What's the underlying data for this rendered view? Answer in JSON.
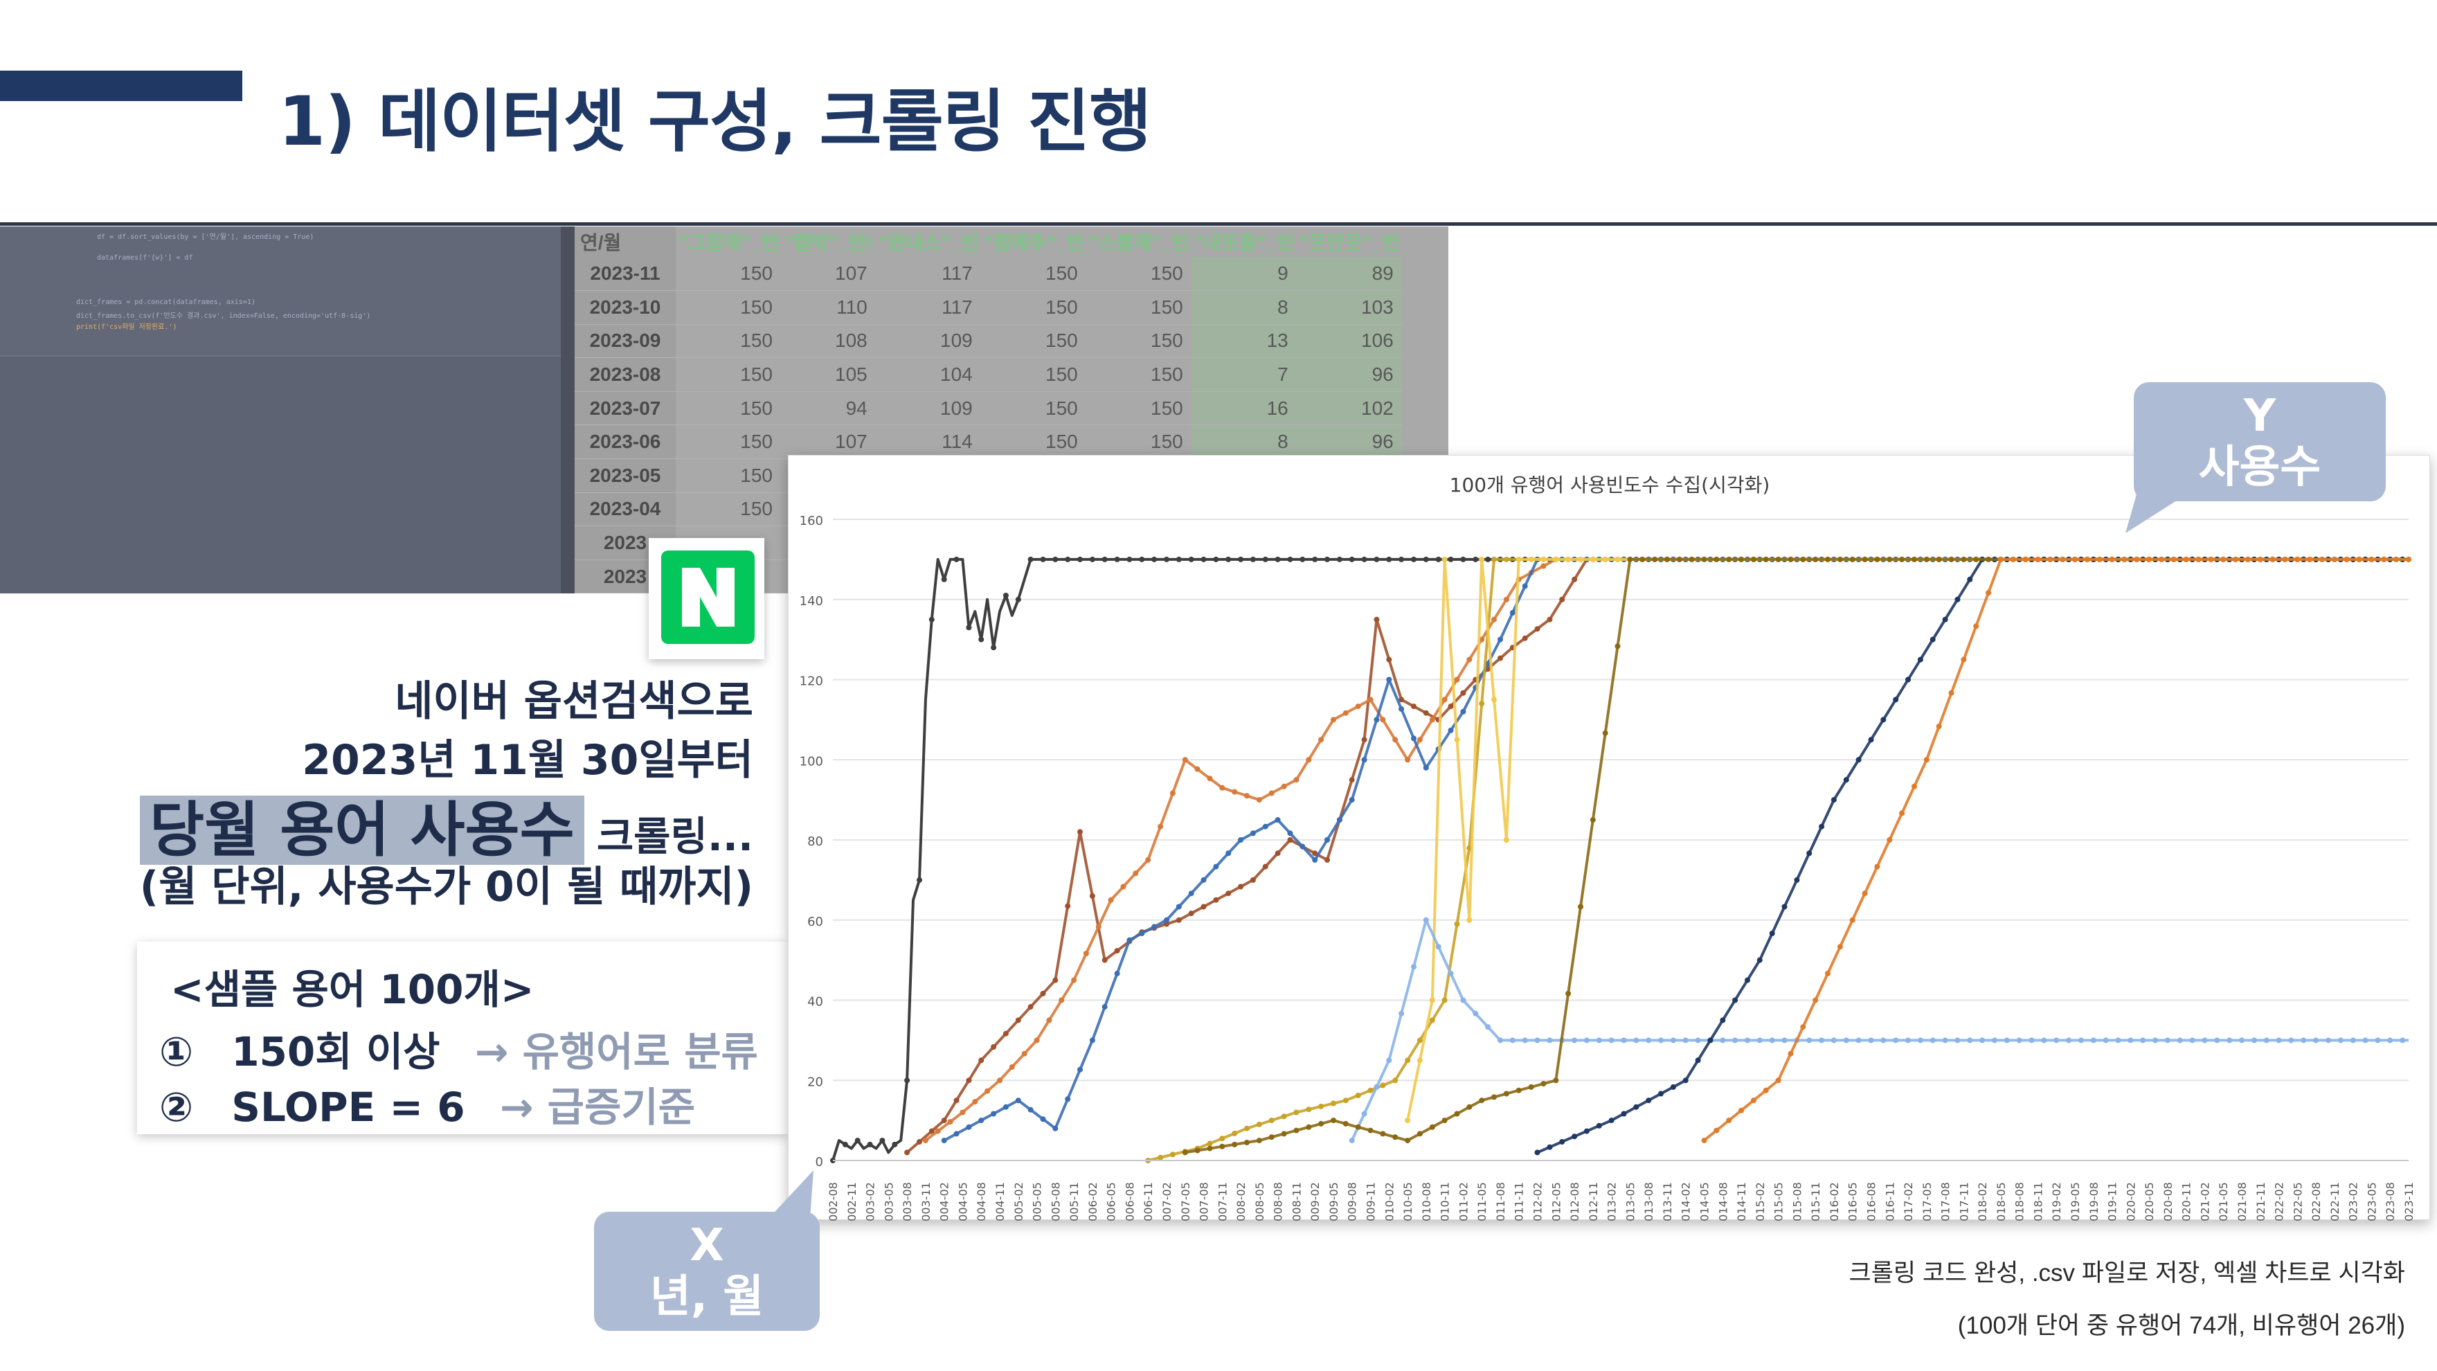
{
  "slide": {
    "title": "1) 데이터셋 구성, 크롤링 진행"
  },
  "code_panel": {
    "lines": [
      "df = df.sort_values(by = ['연/월'], ascending = True)",
      "dataframes[f'{w}'] = df",
      "dict_frames = pd.concat(dataframes, axis=1)",
      "dict_frames.to_csv(f'빈도수 결과.csv', index=False, encoding='utf-8-sig')",
      "print(f'csv파일 저장완료.')"
    ]
  },
  "excel": {
    "headers": [
      "연/월",
      "\"그잡재\"_빈",
      "\"캘박\"_빈!",
      "\"완내스\"_빈",
      "\"점메추\"_빈",
      "\"스불재\"_빈도",
      "\"내또출\"_빈",
      "\"웃안웃\"_빈"
    ],
    "rows": [
      [
        "2023-11",
        "150",
        "107",
        "117",
        "150",
        "150",
        "9",
        "89"
      ],
      [
        "2023-10",
        "150",
        "110",
        "117",
        "150",
        "150",
        "8",
        "103"
      ],
      [
        "2023-09",
        "150",
        "108",
        "109",
        "150",
        "150",
        "13",
        "106"
      ],
      [
        "2023-08",
        "150",
        "105",
        "104",
        "150",
        "150",
        "7",
        "96"
      ],
      [
        "2023-07",
        "150",
        "94",
        "109",
        "150",
        "150",
        "16",
        "102"
      ],
      [
        "2023-06",
        "150",
        "107",
        "114",
        "150",
        "150",
        "8",
        "96"
      ],
      [
        "2023-05",
        "150",
        "",
        "",
        "",
        "",
        "",
        ""
      ],
      [
        "2023-04",
        "150",
        "",
        "",
        "",
        "",
        "",
        ""
      ],
      [
        "2023",
        "",
        "",
        "",
        "",
        "",
        "",
        ""
      ],
      [
        "2023",
        "",
        "",
        "",
        "",
        "",
        "",
        ""
      ]
    ]
  },
  "naver_logo_letter": "N",
  "description": {
    "line1": "네이버 옵션검색으로",
    "line2": "2023년 11월 30일부터",
    "line3_highlight": "당월 용어 사용수",
    "line3_rest": "크롤링...",
    "line4": "(월 단위, 사용수가 0이 될 때까지)"
  },
  "sample_box": {
    "title": "<샘플 용어 100개>",
    "rules": [
      {
        "num": "①",
        "key": "150회 이상",
        "arrow": "→",
        "result": "유행어로 분류"
      },
      {
        "num": "②",
        "key": "SLOPE = 6",
        "arrow": "→",
        "result": "급증기준"
      }
    ]
  },
  "callouts": {
    "y_axis": {
      "line1": "Y",
      "line2": "사용수"
    },
    "x_axis": {
      "line1": "X",
      "line2": "년, 월"
    }
  },
  "notes": {
    "line1": "크롤링 코드 완성,   .csv 파일로 저장,   엑셀 차트로 시각화",
    "line2": "(100개 단어 중 유행어 74개, 비유행어 26개)"
  },
  "colors": {
    "title_navy": "#1f3864",
    "callout_blue": "#aebbd4",
    "naver_green": "#03c75a",
    "muted_result": "#8f9bb3"
  },
  "chart_data": {
    "type": "line",
    "title": "100개 유행어 사용빈도수 수집(시각화)",
    "ylim": [
      0,
      160
    ],
    "yticks": [
      0,
      20,
      40,
      60,
      80,
      100,
      120,
      140,
      160
    ],
    "grid": true,
    "x_start": "2002-08",
    "x_end": "2023-11",
    "x_tick_step_months": 3,
    "series_note": "100 series; representative traces reconstructed",
    "series": [
      {
        "color": "#3f3f3f",
        "start": "2002-08",
        "points": [
          [
            0,
            0
          ],
          [
            1,
            5
          ],
          [
            2,
            4
          ],
          [
            3,
            3
          ],
          [
            4,
            5
          ],
          [
            5,
            3
          ],
          [
            6,
            4
          ],
          [
            7,
            3
          ],
          [
            8,
            5
          ],
          [
            9,
            2
          ],
          [
            10,
            4
          ],
          [
            11,
            5
          ],
          [
            12,
            20
          ],
          [
            13,
            65
          ],
          [
            14,
            70
          ],
          [
            15,
            115
          ],
          [
            16,
            135
          ],
          [
            17,
            150
          ],
          [
            18,
            145
          ],
          [
            19,
            150
          ],
          [
            20,
            150
          ],
          [
            21,
            150
          ],
          [
            22,
            133
          ],
          [
            23,
            137
          ],
          [
            24,
            130
          ],
          [
            25,
            140
          ],
          [
            26,
            128
          ],
          [
            27,
            137
          ],
          [
            28,
            141
          ],
          [
            29,
            136
          ],
          [
            30,
            140
          ],
          [
            31,
            145
          ],
          [
            32,
            150
          ]
        ],
        "then_constant": 150
      },
      {
        "color": "#a0522d",
        "start": "2003-08",
        "points": [
          [
            0,
            2
          ],
          [
            6,
            10
          ],
          [
            12,
            25
          ],
          [
            18,
            35
          ],
          [
            24,
            45
          ],
          [
            28,
            82
          ],
          [
            32,
            50
          ],
          [
            38,
            57
          ],
          [
            44,
            60
          ],
          [
            50,
            65
          ],
          [
            56,
            70
          ],
          [
            62,
            80
          ],
          [
            68,
            75
          ],
          [
            74,
            105
          ],
          [
            76,
            135
          ],
          [
            80,
            115
          ],
          [
            86,
            110
          ],
          [
            92,
            120
          ],
          [
            98,
            128
          ],
          [
            104,
            135
          ],
          [
            110,
            150
          ]
        ],
        "then_constant": 150
      },
      {
        "color": "#d87a3a",
        "start": "2003-11",
        "points": [
          [
            0,
            5
          ],
          [
            6,
            12
          ],
          [
            12,
            20
          ],
          [
            18,
            30
          ],
          [
            24,
            45
          ],
          [
            30,
            65
          ],
          [
            36,
            75
          ],
          [
            42,
            100
          ],
          [
            48,
            93
          ],
          [
            54,
            90
          ],
          [
            60,
            95
          ],
          [
            66,
            110
          ],
          [
            72,
            115
          ],
          [
            78,
            100
          ],
          [
            84,
            115
          ],
          [
            90,
            130
          ],
          [
            96,
            145
          ],
          [
            102,
            150
          ]
        ],
        "then_constant": 150
      },
      {
        "color": "#3b6eb5",
        "start": "2004-02",
        "points": [
          [
            0,
            5
          ],
          [
            6,
            10
          ],
          [
            12,
            15
          ],
          [
            18,
            8
          ],
          [
            24,
            30
          ],
          [
            30,
            55
          ],
          [
            36,
            60
          ],
          [
            42,
            70
          ],
          [
            48,
            80
          ],
          [
            54,
            85
          ],
          [
            60,
            75
          ],
          [
            66,
            90
          ],
          [
            72,
            120
          ],
          [
            78,
            98
          ],
          [
            84,
            112
          ],
          [
            90,
            130
          ],
          [
            96,
            150
          ]
        ],
        "then_constant": 150
      },
      {
        "color": "#c9a227",
        "start": "2006-11",
        "points": [
          [
            0,
            0
          ],
          [
            8,
            3
          ],
          [
            16,
            8
          ],
          [
            24,
            12
          ],
          [
            32,
            15
          ],
          [
            40,
            20
          ],
          [
            48,
            40
          ],
          [
            52,
            78
          ],
          [
            56,
            150
          ]
        ],
        "then_constant": 150
      },
      {
        "color": "#f2c94c",
        "start": "2010-05",
        "points": [
          [
            0,
            10
          ],
          [
            4,
            40
          ],
          [
            6,
            150
          ],
          [
            10,
            60
          ],
          [
            12,
            150
          ],
          [
            16,
            80
          ],
          [
            18,
            150
          ]
        ],
        "then_constant": 150
      },
      {
        "color": "#8ab4e8",
        "start": "2009-08",
        "points": [
          [
            0,
            5
          ],
          [
            6,
            25
          ],
          [
            12,
            60
          ],
          [
            18,
            40
          ],
          [
            24,
            30
          ],
          [
            30,
            30
          ],
          [
            36,
            30
          ],
          [
            42,
            30
          ],
          [
            48,
            30
          ],
          [
            54,
            30
          ],
          [
            60,
            30
          ],
          [
            66,
            30
          ],
          [
            72,
            30
          ],
          [
            78,
            30
          ],
          [
            84,
            30
          ],
          [
            90,
            30
          ],
          [
            96,
            30
          ],
          [
            102,
            30
          ],
          [
            108,
            30
          ],
          [
            114,
            30
          ],
          [
            120,
            30
          ],
          [
            126,
            30
          ],
          [
            132,
            30
          ],
          [
            138,
            30
          ],
          [
            144,
            30
          ],
          [
            150,
            30
          ],
          [
            156,
            30
          ],
          [
            162,
            30
          ],
          [
            168,
            30
          ]
        ],
        "then_constant": 30
      },
      {
        "color": "#1f3864",
        "start": "2012-02",
        "points": [
          [
            0,
            2
          ],
          [
            12,
            10
          ],
          [
            24,
            20
          ],
          [
            36,
            50
          ],
          [
            48,
            90
          ],
          [
            60,
            120
          ],
          [
            72,
            150
          ]
        ],
        "then_constant": 150
      },
      {
        "color": "#8b6914",
        "start": "2007-05",
        "points": [
          [
            0,
            2
          ],
          [
            12,
            5
          ],
          [
            24,
            10
          ],
          [
            36,
            5
          ],
          [
            48,
            15
          ],
          [
            60,
            20
          ],
          [
            72,
            150
          ]
        ],
        "then_constant": 150
      },
      {
        "color": "#e07b2a",
        "start": "2014-05",
        "points": [
          [
            0,
            5
          ],
          [
            12,
            20
          ],
          [
            24,
            60
          ],
          [
            36,
            100
          ],
          [
            48,
            150
          ]
        ],
        "then_constant": 150
      }
    ]
  }
}
